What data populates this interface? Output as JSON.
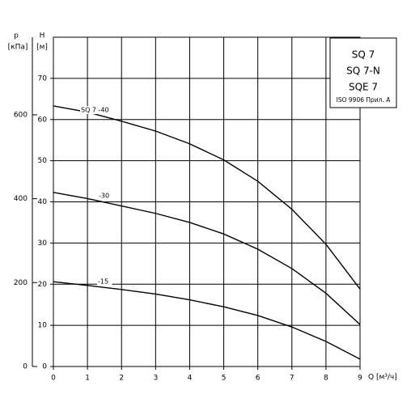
{
  "chart_data": {
    "type": "line",
    "x_label": "Q [м³/ч]",
    "y_label_name": "H",
    "y_label_unit": "[м]",
    "y2_label_name": "p",
    "y2_label_unit": "[кПа]",
    "box_lines": [
      "SQ 7",
      "SQ 7-N",
      "SQE 7",
      "ISO 9906 Прил. A"
    ],
    "x": [
      0,
      1,
      2,
      3,
      4,
      5,
      6,
      7,
      8,
      9
    ],
    "xlim": [
      0,
      9
    ],
    "xticks": [
      0,
      1,
      2,
      3,
      4,
      5,
      6,
      7,
      8,
      9
    ],
    "ylim": [
      0,
      80
    ],
    "yticks": [
      0,
      10,
      20,
      30,
      40,
      50,
      60,
      70
    ],
    "y2lim": [
      0,
      785
    ],
    "y2ticks": [
      0,
      200,
      400,
      600
    ],
    "grid": true,
    "series": [
      {
        "name": "SQ 7 -40",
        "color": "#000000",
        "values": [
          63.3,
          61.8,
          59.6,
          57.2,
          54.1,
          50.2,
          45,
          38.2,
          29.7,
          18.8
        ]
      },
      {
        "name": "-30",
        "color": "#000000",
        "values": [
          42.3,
          40.8,
          39,
          37.2,
          35,
          32.2,
          28.5,
          23.8,
          17.8,
          10.2
        ]
      },
      {
        "name": "-15",
        "color": "#000000",
        "values": [
          20.6,
          19.7,
          18.7,
          17.6,
          16.2,
          14.5,
          12.4,
          9.6,
          6.1,
          1.8
        ]
      }
    ]
  }
}
